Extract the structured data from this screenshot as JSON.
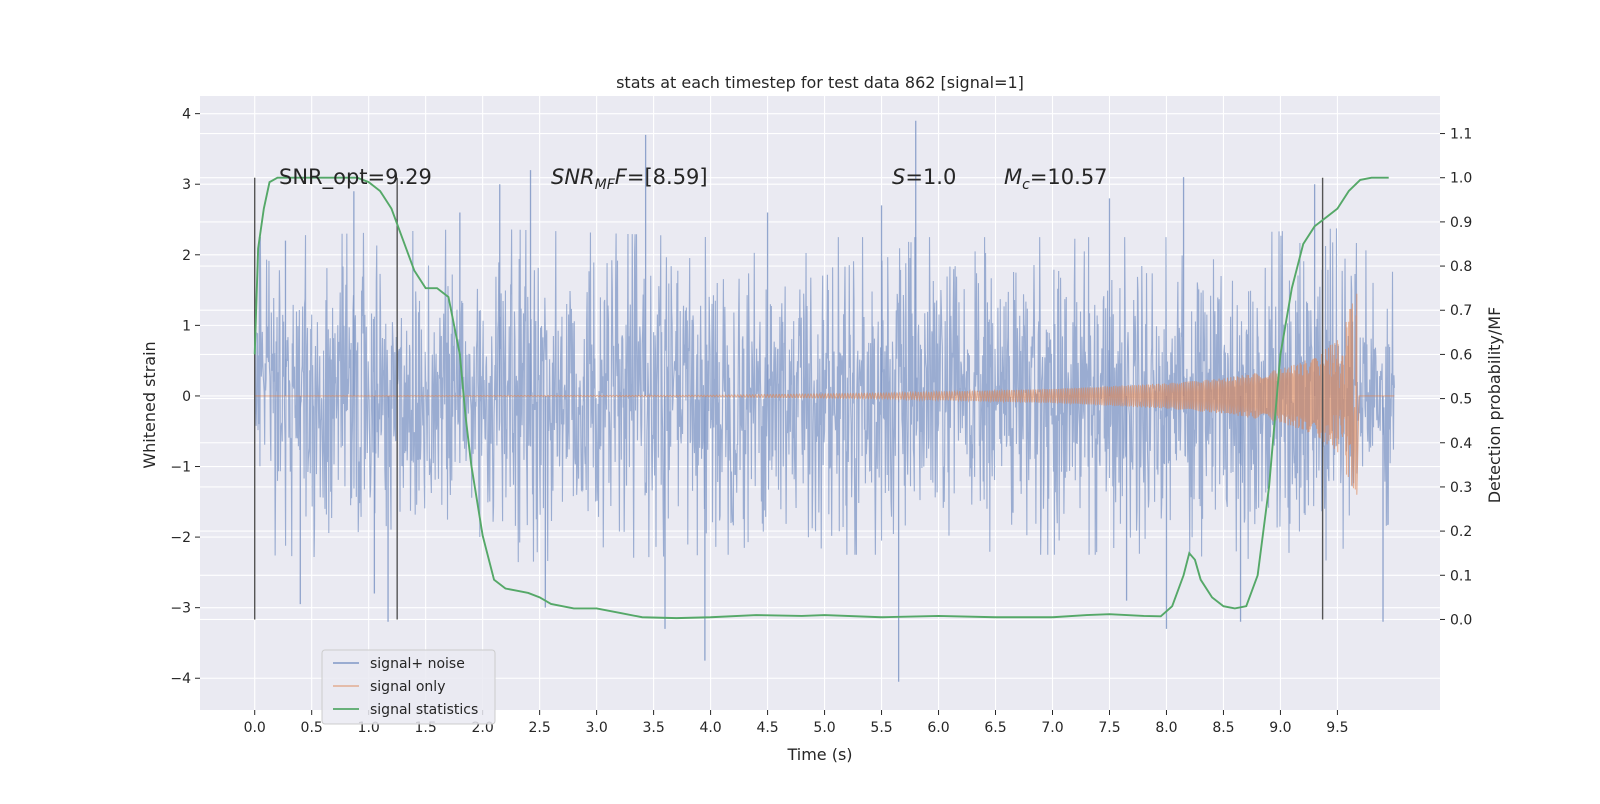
{
  "chart_data": {
    "type": "line",
    "title": "stats at each timestep for test data 862 [signal=1]",
    "xlabel": "Time (s)",
    "ylabel": "Whitened strain",
    "ylabel_right": "Detection probability/MF",
    "xlim": [
      -0.48,
      10.4
    ],
    "ylim": [
      -4.45,
      4.25
    ],
    "ylim_right": [
      -0.205,
      1.185
    ],
    "xticks": [
      "0.0",
      "0.5",
      "1.0",
      "1.5",
      "2.0",
      "2.5",
      "3.0",
      "3.5",
      "4.0",
      "4.5",
      "5.0",
      "5.5",
      "6.0",
      "6.5",
      "7.0",
      "7.5",
      "8.0",
      "8.5",
      "9.0",
      "9.5"
    ],
    "yticks": [
      "4",
      "3",
      "2",
      "1",
      "0",
      "−1",
      "−2",
      "−3",
      "−4"
    ],
    "yticks_right": [
      "1.1",
      "1.0",
      "0.9",
      "0.8",
      "0.7",
      "0.6",
      "0.5",
      "0.4",
      "0.3",
      "0.2",
      "0.1",
      "0.0"
    ],
    "grid": true,
    "legend_position": "lower-left",
    "annotations": {
      "snr_opt": "SNR_opt=9.29",
      "snr_mf_label": "SNR",
      "snr_mf_sub": "MF",
      "snr_mf_value": "=[8.59]",
      "s_label": "S",
      "s_value": "=1.0",
      "mc_label": "M",
      "mc_sub": "c",
      "mc_value": "=10.57"
    },
    "vertical_markers": [
      0.0,
      1.25,
      9.37
    ],
    "series": [
      {
        "name": "signal+ noise",
        "color": "#7f97c6",
        "description_x_range": [
          0.0,
          10.0
        ],
        "envelope_typical_max": [
          [
            0.0,
            1.8
          ],
          [
            2.0,
            1.9
          ],
          [
            4.0,
            1.8
          ],
          [
            6.0,
            1.8
          ],
          [
            8.0,
            1.8
          ],
          [
            9.5,
            1.9
          ],
          [
            10.0,
            1.4
          ]
        ],
        "spikes": [
          [
            0.27,
            2.2
          ],
          [
            0.87,
            2.9
          ],
          [
            1.8,
            2.6
          ],
          [
            2.15,
            3.0
          ],
          [
            2.42,
            3.2
          ],
          [
            3.43,
            3.7
          ],
          [
            4.5,
            2.6
          ],
          [
            5.5,
            2.7
          ],
          [
            5.8,
            3.9
          ],
          [
            7.5,
            2.8
          ],
          [
            8.15,
            3.1
          ],
          [
            9.3,
            3.0
          ],
          [
            1.05,
            -2.8
          ],
          [
            1.17,
            -3.2
          ],
          [
            3.6,
            -3.3
          ],
          [
            3.95,
            -3.75
          ],
          [
            5.65,
            -4.05
          ],
          [
            8.0,
            -3.3
          ],
          [
            8.65,
            -3.2
          ],
          [
            9.9,
            -3.2
          ],
          [
            0.4,
            -2.95
          ],
          [
            2.55,
            -3.0
          ],
          [
            7.65,
            -2.9
          ]
        ]
      },
      {
        "name": "signal only",
        "color": "#dd8452",
        "chirp_end": 9.67,
        "amplitude_points": [
          [
            0.0,
            0.0
          ],
          [
            4.0,
            0.01
          ],
          [
            5.5,
            0.04
          ],
          [
            7.0,
            0.1
          ],
          [
            8.0,
            0.18
          ],
          [
            8.5,
            0.25
          ],
          [
            9.0,
            0.38
          ],
          [
            9.3,
            0.55
          ],
          [
            9.5,
            0.8
          ],
          [
            9.6,
            1.2
          ],
          [
            9.67,
            1.45
          ]
        ]
      },
      {
        "name": "signal statistics",
        "color": "#55a868",
        "axis": "right",
        "x": [
          0.0,
          0.03,
          0.08,
          0.13,
          0.2,
          0.3,
          0.5,
          0.7,
          0.9,
          1.0,
          1.1,
          1.2,
          1.3,
          1.4,
          1.5,
          1.6,
          1.65,
          1.7,
          1.8,
          1.85,
          1.9,
          2.0,
          2.1,
          2.2,
          2.3,
          2.4,
          2.5,
          2.6,
          2.8,
          3.0,
          3.2,
          3.4,
          3.7,
          4.0,
          4.4,
          4.8,
          5.0,
          5.5,
          6.0,
          6.5,
          7.0,
          7.3,
          7.5,
          7.8,
          7.95,
          8.05,
          8.15,
          8.2,
          8.25,
          8.3,
          8.4,
          8.5,
          8.6,
          8.7,
          8.8,
          8.9,
          9.0,
          9.1,
          9.2,
          9.3,
          9.4,
          9.5,
          9.6,
          9.7,
          9.8,
          9.95
        ],
        "values": [
          0.6,
          0.84,
          0.93,
          0.99,
          1.0,
          1.0,
          1.0,
          1.0,
          1.0,
          0.99,
          0.97,
          0.93,
          0.86,
          0.79,
          0.75,
          0.75,
          0.74,
          0.73,
          0.6,
          0.46,
          0.35,
          0.19,
          0.09,
          0.07,
          0.065,
          0.06,
          0.05,
          0.035,
          0.025,
          0.025,
          0.015,
          0.005,
          0.003,
          0.005,
          0.01,
          0.008,
          0.01,
          0.005,
          0.008,
          0.005,
          0.005,
          0.01,
          0.012,
          0.008,
          0.007,
          0.03,
          0.1,
          0.15,
          0.135,
          0.09,
          0.05,
          0.03,
          0.025,
          0.03,
          0.1,
          0.3,
          0.6,
          0.75,
          0.85,
          0.89,
          0.91,
          0.93,
          0.97,
          0.995,
          1.0,
          1.0
        ]
      }
    ]
  }
}
